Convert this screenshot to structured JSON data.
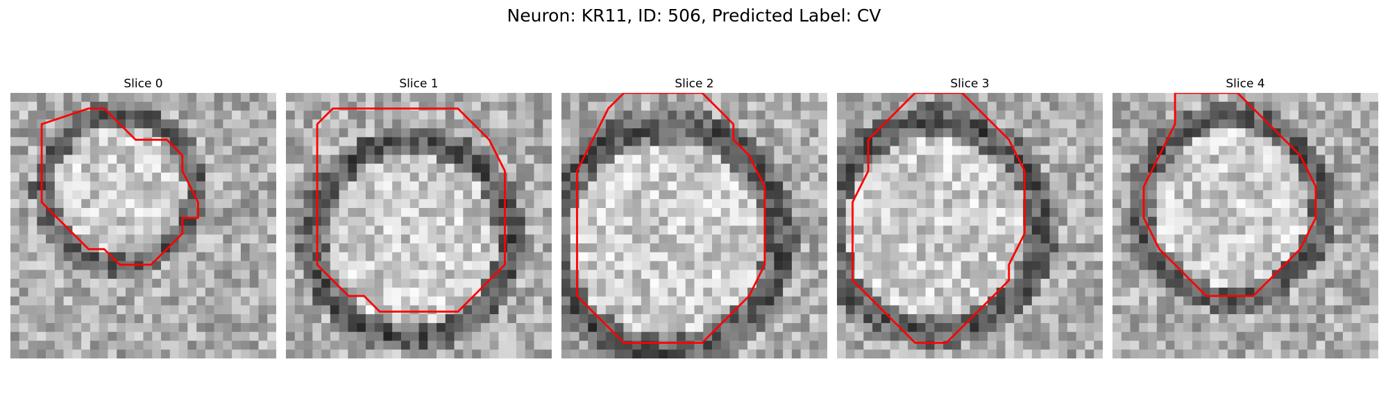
{
  "title": "Neuron: KR11, ID: 506, Predicted Label: CV",
  "colors": {
    "contour": "#ff0000",
    "background": "#ffffff",
    "colormap": "gray"
  },
  "panels": [
    {
      "label": "Slice 0",
      "contour": [
        [
          3.5,
          1.5
        ],
        [
          5,
          1
        ],
        [
          6,
          1
        ],
        [
          7,
          2
        ],
        [
          8,
          3
        ],
        [
          10,
          3
        ],
        [
          11,
          4
        ],
        [
          11,
          5
        ],
        [
          12,
          7
        ],
        [
          12,
          8
        ],
        [
          11,
          8
        ],
        [
          11,
          9
        ],
        [
          10,
          10
        ],
        [
          9,
          11
        ],
        [
          8,
          11
        ],
        [
          7,
          11
        ],
        [
          6,
          10
        ],
        [
          5,
          10
        ],
        [
          4,
          9
        ],
        [
          3,
          8
        ],
        [
          2,
          7
        ],
        [
          2,
          4
        ],
        [
          2,
          3
        ],
        [
          2,
          2
        ]
      ]
    },
    {
      "label": "Slice 1",
      "contour": [
        [
          2,
          2
        ],
        [
          3,
          1
        ],
        [
          11,
          1
        ],
        [
          12,
          2
        ],
        [
          13,
          3
        ],
        [
          14,
          5
        ],
        [
          14,
          9
        ],
        [
          14,
          11
        ],
        [
          13,
          12
        ],
        [
          12,
          13
        ],
        [
          11,
          14
        ],
        [
          10,
          14
        ],
        [
          9,
          14
        ],
        [
          8,
          14
        ],
        [
          7,
          14
        ],
        [
          6,
          14
        ],
        [
          5,
          13
        ],
        [
          4,
          13
        ],
        [
          3,
          12
        ],
        [
          2,
          11
        ],
        [
          2,
          9
        ],
        [
          2,
          6
        ]
      ]
    },
    {
      "label": "Slice 2",
      "contour": [
        [
          3,
          1
        ],
        [
          4,
          0
        ],
        [
          9,
          0
        ],
        [
          10,
          1
        ],
        [
          11,
          2
        ],
        [
          11,
          3
        ],
        [
          12,
          4
        ],
        [
          13,
          6
        ],
        [
          13,
          11
        ],
        [
          12,
          13
        ],
        [
          11,
          14
        ],
        [
          10,
          15
        ],
        [
          9,
          16
        ],
        [
          8,
          16
        ],
        [
          7,
          16
        ],
        [
          6,
          16
        ],
        [
          5,
          16
        ],
        [
          4,
          16
        ],
        [
          3,
          15
        ],
        [
          2,
          14
        ],
        [
          1,
          13
        ],
        [
          1,
          11
        ],
        [
          1,
          7
        ],
        [
          1,
          5
        ],
        [
          2,
          3
        ]
      ]
    },
    {
      "label": "Slice 3",
      "contour": [
        [
          3,
          2
        ],
        [
          4,
          1
        ],
        [
          5,
          0
        ],
        [
          8,
          0
        ],
        [
          9,
          1
        ],
        [
          10,
          2
        ],
        [
          11,
          3
        ],
        [
          12,
          5
        ],
        [
          12,
          9
        ],
        [
          11,
          11
        ],
        [
          11,
          12
        ],
        [
          10,
          13
        ],
        [
          9,
          14
        ],
        [
          8,
          15
        ],
        [
          7,
          16
        ],
        [
          6,
          16
        ],
        [
          5,
          16
        ],
        [
          4,
          15
        ],
        [
          3,
          14
        ],
        [
          2,
          13
        ],
        [
          1,
          12
        ],
        [
          1,
          9
        ],
        [
          1,
          7
        ],
        [
          2,
          5
        ],
        [
          2,
          3
        ]
      ]
    },
    {
      "label": "Slice 4",
      "contour": [
        [
          4,
          0
        ],
        [
          8,
          0
        ],
        [
          9,
          1
        ],
        [
          10,
          2
        ],
        [
          11,
          3
        ],
        [
          12,
          4
        ],
        [
          13,
          6
        ],
        [
          13,
          8
        ],
        [
          12,
          10
        ],
        [
          11,
          11
        ],
        [
          10,
          12
        ],
        [
          9,
          13
        ],
        [
          8,
          13
        ],
        [
          7,
          13
        ],
        [
          6,
          13
        ],
        [
          5,
          12
        ],
        [
          4,
          11
        ],
        [
          3,
          10
        ],
        [
          2,
          8
        ],
        [
          2,
          6
        ],
        [
          3,
          4
        ],
        [
          4,
          2
        ]
      ]
    }
  ]
}
